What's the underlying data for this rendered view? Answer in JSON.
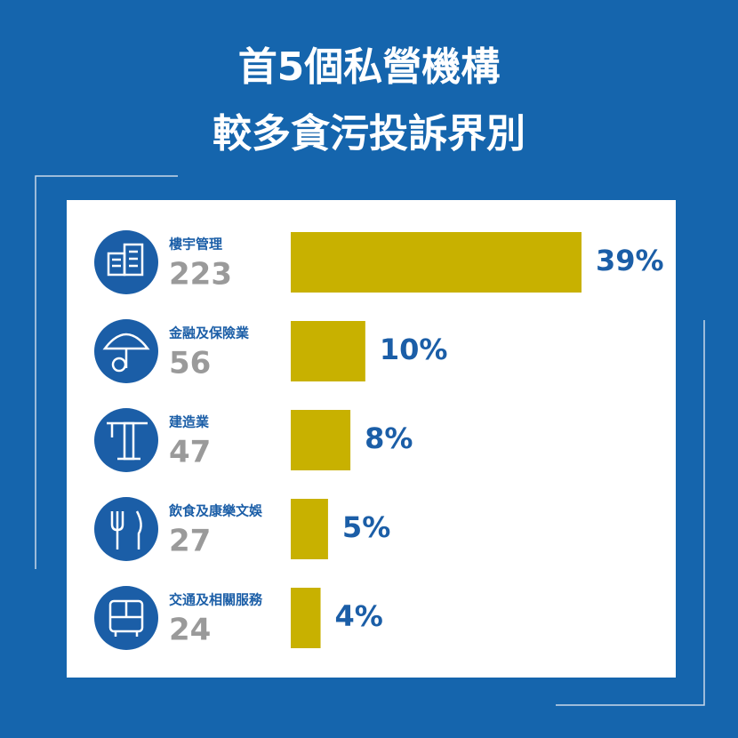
{
  "chart_data": {
    "type": "bar",
    "orientation": "horizontal",
    "title": [
      "首5個私營機構",
      "較多貪污投訴界別"
    ],
    "categories": [
      "樓宇管理",
      "金融及保險業",
      "建造業",
      "飲食及康樂文娛",
      "交通及相關服務"
    ],
    "counts": [
      223,
      56,
      47,
      27,
      24
    ],
    "values": [
      39,
      10,
      8,
      5,
      4
    ],
    "value_labels": [
      "39%",
      "10%",
      "8%",
      "5%",
      "4%"
    ],
    "color": "#c8b100"
  }
}
